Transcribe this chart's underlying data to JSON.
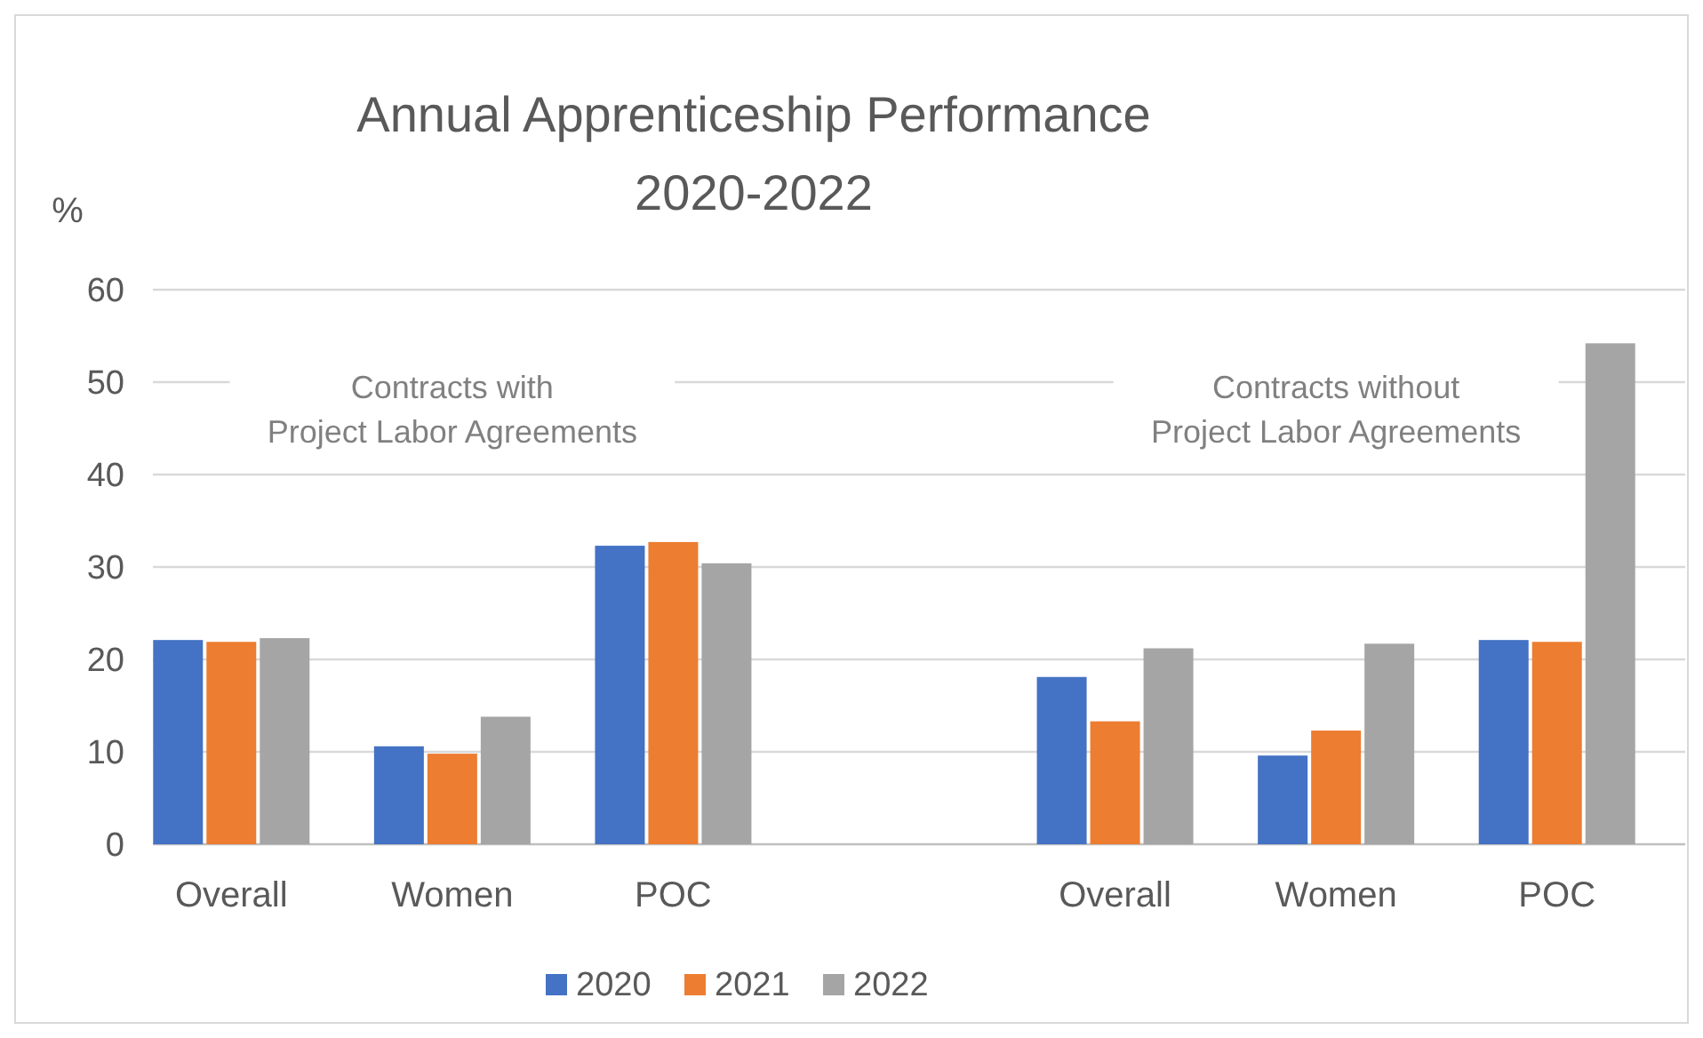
{
  "chart_data": {
    "type": "bar",
    "title": "Annual Apprenticeship Performance",
    "subtitle": "2020-2022",
    "ylabel": "%",
    "categories": [
      "Overall",
      "Women",
      "POC",
      null,
      "Overall",
      "Women",
      "POC"
    ],
    "series": [
      {
        "name": "2020",
        "color": "#4472c4",
        "values": [
          22.1,
          10.6,
          32.3,
          null,
          18.1,
          9.6,
          22.1
        ]
      },
      {
        "name": "2021",
        "color": "#ed7d31",
        "values": [
          21.9,
          9.8,
          32.7,
          null,
          13.3,
          12.3,
          21.9
        ]
      },
      {
        "name": "2022",
        "color": "#a5a5a5",
        "values": [
          22.3,
          13.8,
          30.4,
          null,
          21.2,
          21.7,
          54.2
        ]
      }
    ],
    "ylim": [
      0,
      60
    ],
    "yticks": [
      0,
      10,
      20,
      30,
      40,
      50,
      60
    ],
    "grid": "y",
    "legend": "bottom",
    "annotations": [
      "Contracts with\nProject Labor Agreements",
      "Contracts without\nProject Labor Agreements"
    ]
  }
}
